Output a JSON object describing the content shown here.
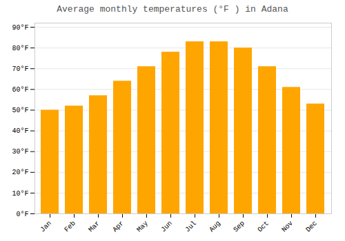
{
  "chart_data": {
    "type": "bar",
    "title": "Average monthly temperatures (°F ) in Adana",
    "categories": [
      "Jan",
      "Feb",
      "Mar",
      "Apr",
      "May",
      "Jun",
      "Jul",
      "Aug",
      "Sep",
      "Oct",
      "Nov",
      "Dec"
    ],
    "values": [
      50,
      52,
      57,
      64,
      71,
      78,
      83,
      83,
      80,
      71,
      61,
      53
    ],
    "color": "#FFA500",
    "ylim": [
      0,
      92
    ],
    "yticks": [
      {
        "value": 0,
        "label": "0°F"
      },
      {
        "value": 10,
        "label": "10°F"
      },
      {
        "value": 20,
        "label": "20°F"
      },
      {
        "value": 30,
        "label": "30°F"
      },
      {
        "value": 40,
        "label": "40°F"
      },
      {
        "value": 50,
        "label": "50°F"
      },
      {
        "value": 60,
        "label": "60°F"
      },
      {
        "value": 70,
        "label": "70°F"
      },
      {
        "value": 80,
        "label": "80°F"
      },
      {
        "value": 90,
        "label": "90°F"
      }
    ],
    "grid": true
  }
}
